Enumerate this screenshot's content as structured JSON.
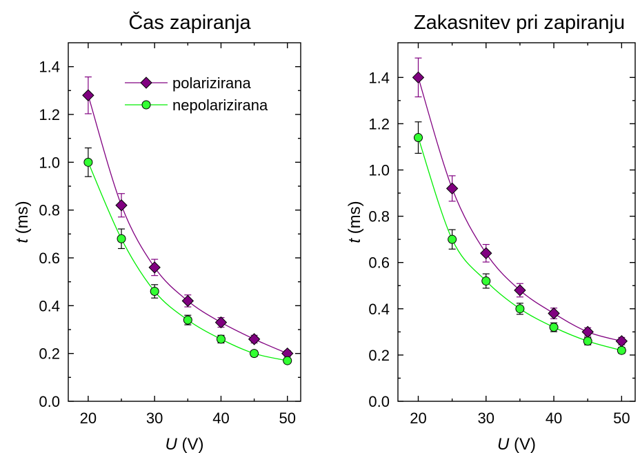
{
  "chart_data": [
    {
      "type": "line",
      "title": "Čas zapiranja",
      "xlabel": {
        "symbol": "U",
        "unit": " (V)"
      },
      "ylabel": {
        "symbol": "t",
        "unit": " (ms)"
      },
      "x": [
        20,
        25,
        30,
        35,
        40,
        45,
        50
      ],
      "xlim": [
        17,
        52
      ],
      "ylim": [
        0.0,
        1.5
      ],
      "xticks": [
        "20",
        "30",
        "40",
        "50"
      ],
      "yticks": [
        "0.0",
        "0.2",
        "0.4",
        "0.6",
        "0.8",
        "1.0",
        "1.2",
        "1.4"
      ],
      "legend": {
        "show": true,
        "position": "top-right"
      },
      "grid": false,
      "series": [
        {
          "name": "polarizirana",
          "marker": "diamond",
          "line_color": "#800080",
          "fill_color": "#800080",
          "values": [
            1.28,
            0.82,
            0.56,
            0.42,
            0.33,
            0.26,
            0.2
          ],
          "errors": [
            0.077,
            0.049,
            0.034,
            0.025,
            0.02,
            0.016,
            0.012
          ]
        },
        {
          "name": "nepolarizirana",
          "marker": "circle",
          "line_color": "#00ee00",
          "fill_color": "#33ff33",
          "values": [
            1.0,
            0.68,
            0.46,
            0.34,
            0.26,
            0.2,
            0.17
          ],
          "errors": [
            0.06,
            0.041,
            0.028,
            0.02,
            0.016,
            0.012,
            0.01
          ]
        }
      ]
    },
    {
      "type": "line",
      "title": "Zakasnitev pri zapiranju",
      "xlabel": {
        "symbol": "U",
        "unit": " (V)"
      },
      "ylabel": {
        "symbol": "t",
        "unit": " (ms)"
      },
      "x": [
        20,
        25,
        30,
        35,
        40,
        45,
        50
      ],
      "xlim": [
        17,
        52
      ],
      "ylim": [
        0.0,
        1.55
      ],
      "xticks": [
        "20",
        "30",
        "40",
        "50"
      ],
      "yticks": [
        "0.0",
        "0.2",
        "0.4",
        "0.6",
        "0.8",
        "1.0",
        "1.2",
        "1.4"
      ],
      "legend": {
        "show": false
      },
      "grid": false,
      "series": [
        {
          "name": "polarizirana",
          "marker": "diamond",
          "line_color": "#800080",
          "fill_color": "#800080",
          "values": [
            1.4,
            0.92,
            0.64,
            0.48,
            0.38,
            0.3,
            0.26
          ],
          "errors": [
            0.084,
            0.055,
            0.038,
            0.029,
            0.023,
            0.018,
            0.016
          ]
        },
        {
          "name": "nepolarizirana",
          "marker": "circle",
          "line_color": "#00ee00",
          "fill_color": "#33ff33",
          "values": [
            1.14,
            0.7,
            0.52,
            0.4,
            0.32,
            0.26,
            0.22
          ],
          "errors": [
            0.068,
            0.042,
            0.031,
            0.024,
            0.019,
            0.016,
            0.013
          ]
        }
      ]
    }
  ]
}
